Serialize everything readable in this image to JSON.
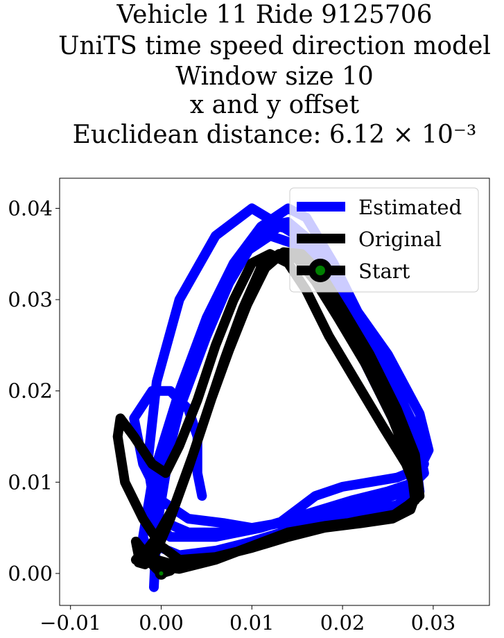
{
  "chart_data": {
    "type": "line",
    "title_lines": [
      "Vehicle 11 Ride 9125706",
      "UniTS time speed direction model",
      "Window size 10",
      "x and y offset",
      "Euclidean distance: 6.12 × 10⁻³"
    ],
    "xlabel": "",
    "ylabel": "",
    "xlim": [
      -0.0112,
      0.0362
    ],
    "ylim": [
      -0.0035,
      0.0433
    ],
    "xticks": [
      -0.01,
      0.0,
      0.01,
      0.02,
      0.03
    ],
    "xtick_labels": [
      "−0.01",
      "0.00",
      "0.01",
      "0.02",
      "0.03"
    ],
    "yticks": [
      0.0,
      0.01,
      0.02,
      0.03,
      0.04
    ],
    "ytick_labels": [
      "0.00",
      "0.01",
      "0.02",
      "0.03",
      "0.04"
    ],
    "grid": false,
    "legend": {
      "placement": "top-right",
      "entries": [
        "Estimated",
        "Original",
        "Start"
      ]
    },
    "series": [
      {
        "name": "Estimated",
        "color": "#0000ff",
        "x": [
          0.0045,
          0.004,
          0.004,
          0.003,
          0.001,
          -0.001,
          -0.003,
          -0.002,
          0.0,
          0.003,
          0.007,
          0.01,
          0.013,
          0.015,
          0.017,
          0.02,
          0.023,
          0.026,
          0.0285,
          0.0295,
          0.0285,
          0.025,
          0.02,
          0.015,
          0.01,
          0.006,
          0.002,
          -0.0005,
          -0.0015,
          -0.0005,
          0.003,
          0.008,
          0.013,
          0.018,
          0.023,
          0.027,
          0.029,
          0.028,
          0.025,
          0.022,
          0.019,
          0.016,
          0.014,
          0.011,
          0.008,
          0.005,
          0.002,
          -0.001,
          -0.002,
          -0.001,
          0.002,
          0.007,
          0.012,
          0.017,
          0.022,
          0.026,
          0.0285,
          0.028,
          0.026,
          0.023,
          0.02,
          0.017,
          0.014,
          0.011,
          0.008,
          0.005,
          0.002,
          -0.0005,
          -0.001,
          0.001,
          0.006,
          0.011,
          0.016,
          0.021,
          0.025,
          0.028,
          0.029,
          0.027,
          0.024,
          0.021,
          0.018,
          0.015,
          0.013,
          0.01,
          0.007,
          0.004,
          0.001,
          -0.001,
          -0.0005,
          0.002,
          0.006,
          0.01,
          0.015,
          0.02,
          0.024,
          0.027,
          0.028,
          0.026,
          0.023,
          0.02,
          0.017,
          0.015,
          0.012,
          0.009,
          0.006,
          0.003,
          0.001,
          -0.0005,
          -0.0008
        ],
        "y": [
          0.0085,
          0.011,
          0.015,
          0.018,
          0.02,
          0.02,
          0.017,
          0.012,
          0.008,
          0.006,
          0.0055,
          0.005,
          0.0055,
          0.007,
          0.0085,
          0.0095,
          0.01,
          0.0105,
          0.0115,
          0.0135,
          0.0175,
          0.024,
          0.031,
          0.037,
          0.04,
          0.037,
          0.03,
          0.021,
          0.012,
          0.006,
          0.0045,
          0.0045,
          0.0055,
          0.007,
          0.008,
          0.009,
          0.011,
          0.016,
          0.022,
          0.028,
          0.034,
          0.039,
          0.04,
          0.038,
          0.033,
          0.026,
          0.018,
          0.01,
          0.004,
          0.001,
          0.001,
          0.002,
          0.0035,
          0.005,
          0.0065,
          0.0075,
          0.009,
          0.013,
          0.019,
          0.025,
          0.031,
          0.036,
          0.0385,
          0.038,
          0.034,
          0.028,
          0.02,
          0.012,
          0.006,
          0.004,
          0.004,
          0.005,
          0.0065,
          0.008,
          0.009,
          0.01,
          0.012,
          0.017,
          0.023,
          0.029,
          0.034,
          0.0375,
          0.038,
          0.036,
          0.031,
          0.024,
          0.016,
          0.008,
          0.003,
          0.002,
          0.0025,
          0.0035,
          0.005,
          0.0065,
          0.008,
          0.009,
          0.011,
          0.016,
          0.022,
          0.028,
          0.033,
          0.036,
          0.037,
          0.035,
          0.03,
          0.022,
          0.014,
          0.005,
          -0.0015
        ]
      },
      {
        "name": "Original",
        "color": "#000000",
        "x": [
          0.0,
          -0.001,
          -0.0025,
          -0.0028,
          -0.002,
          -0.0005,
          0.002,
          0.006,
          0.01,
          0.014,
          0.018,
          0.022,
          0.0255,
          0.0275,
          0.0282,
          0.027,
          0.0245,
          0.0215,
          0.0185,
          0.016,
          0.014,
          0.012,
          0.01,
          0.008,
          0.006,
          0.004,
          0.002,
          0.0005,
          -0.001,
          -0.003,
          -0.0045,
          -0.0048,
          -0.004,
          -0.002,
          0.0,
          0.002,
          0.006,
          0.01,
          0.014,
          0.018,
          0.022,
          0.026,
          0.0285,
          0.028,
          0.026,
          0.023,
          0.02,
          0.0175,
          0.0155,
          0.0135,
          0.0115,
          0.0095,
          0.0075,
          0.0055,
          0.0035,
          0.0015,
          -0.0005,
          -0.002,
          -0.0028,
          -0.0022,
          -0.0005,
          0.002,
          0.006,
          0.01,
          0.014,
          0.018,
          0.022,
          0.0255,
          0.028,
          0.0275,
          0.0255,
          0.0225,
          0.0195,
          0.017,
          0.015,
          0.013,
          0.011,
          0.009,
          0.007,
          0.005,
          0.003,
          0.001,
          -0.0005,
          -0.0018,
          -0.0025,
          -0.002,
          -0.0005,
          0.0015,
          0.001,
          0.0
        ],
        "y": [
          0.0,
          0.001,
          0.002,
          0.0035,
          0.0025,
          0.0008,
          0.0005,
          0.0015,
          0.003,
          0.0042,
          0.005,
          0.0055,
          0.006,
          0.007,
          0.009,
          0.012,
          0.016,
          0.021,
          0.026,
          0.031,
          0.034,
          0.035,
          0.034,
          0.03,
          0.025,
          0.019,
          0.014,
          0.011,
          0.012,
          0.015,
          0.017,
          0.015,
          0.01,
          0.006,
          0.003,
          0.0015,
          0.0018,
          0.0028,
          0.004,
          0.005,
          0.0058,
          0.0065,
          0.0085,
          0.013,
          0.018,
          0.024,
          0.029,
          0.033,
          0.035,
          0.0352,
          0.0335,
          0.0295,
          0.0245,
          0.019,
          0.013,
          0.0075,
          0.004,
          0.002,
          0.0015,
          0.0022,
          0.0015,
          0.0008,
          0.0015,
          0.003,
          0.0045,
          0.0052,
          0.0057,
          0.0063,
          0.008,
          0.012,
          0.017,
          0.023,
          0.028,
          0.032,
          0.0345,
          0.035,
          0.0335,
          0.029,
          0.0235,
          0.0175,
          0.0115,
          0.006,
          0.0025,
          0.001,
          0.0012,
          0.002,
          0.0012,
          0.0008,
          0.0003,
          0.0
        ]
      }
    ],
    "start_point": {
      "name": "Start",
      "x": 0.0,
      "y": 0.0,
      "marker_color": "#008000",
      "edge_color": "#000000"
    }
  }
}
